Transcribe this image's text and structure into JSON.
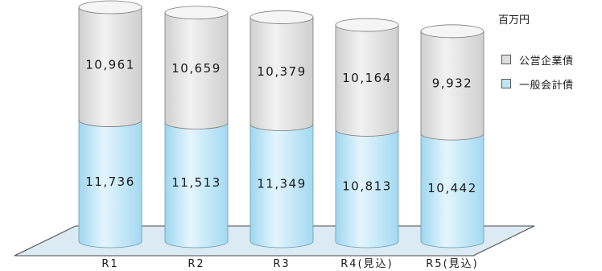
{
  "chart_data": {
    "type": "bar",
    "stacked": true,
    "categories": [
      "R1",
      "R2",
      "R3",
      "R4(見込)",
      "R5(見込)"
    ],
    "series": [
      {
        "name": "一般会計債",
        "values": [
          11736,
          11513,
          11349,
          10813,
          10442
        ],
        "labels": [
          "11,736",
          "11,513",
          "11,349",
          "10,813",
          "10,442"
        ],
        "color": "#bfe6f6"
      },
      {
        "name": "公営企業債",
        "values": [
          10961,
          10659,
          10379,
          10164,
          9932
        ],
        "labels": [
          "10,961",
          "10,659",
          "10,379",
          "10,164",
          "9,932"
        ],
        "color": "#dedede"
      }
    ],
    "unit": "百万円",
    "legend_position": "right",
    "grid": false
  }
}
